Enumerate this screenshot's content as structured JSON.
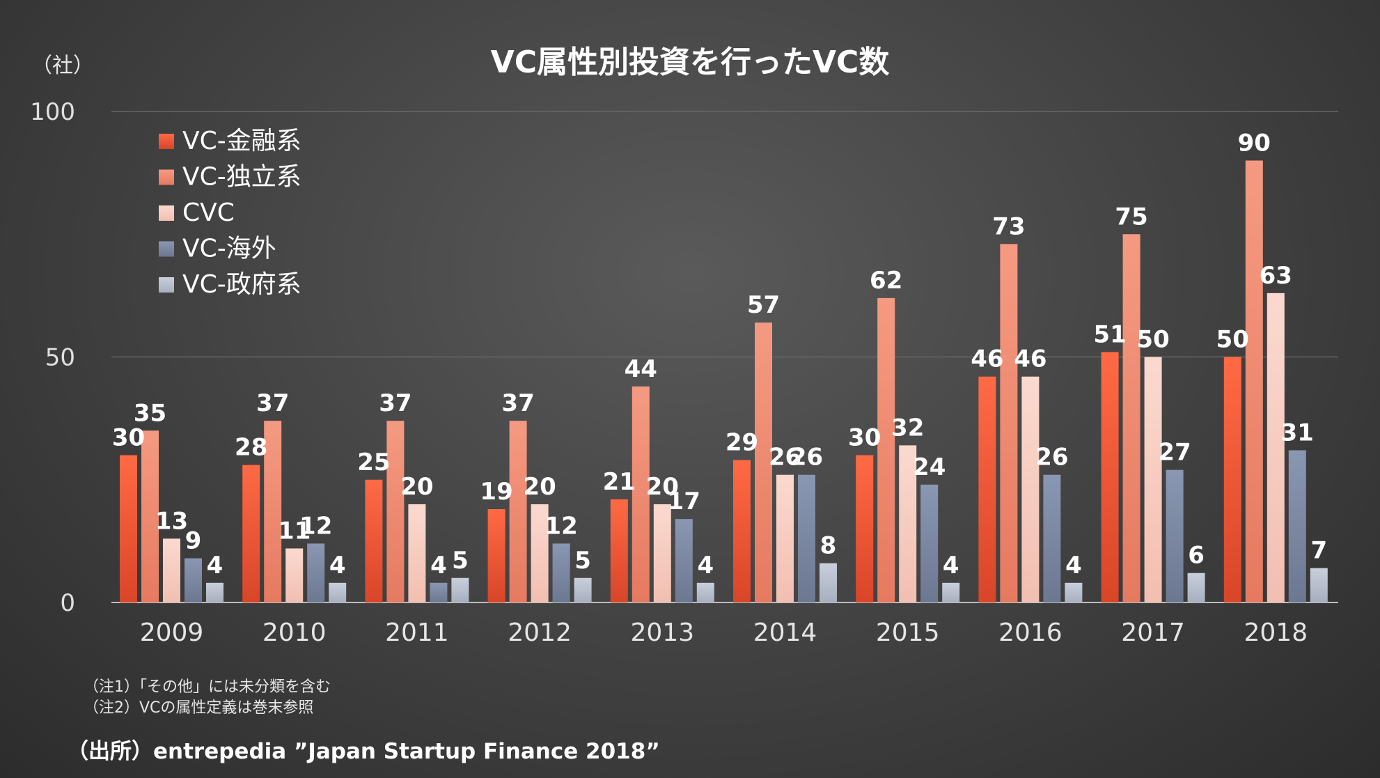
{
  "chart_data": {
    "type": "bar",
    "title": "VC属性別投資を行ったVC数",
    "unit_label": "（社）",
    "ylim": [
      0,
      100
    ],
    "yticks": [
      "0",
      "50",
      "100"
    ],
    "categories": [
      "2009",
      "2010",
      "2011",
      "2012",
      "2013",
      "2014",
      "2015",
      "2016",
      "2017",
      "2018"
    ],
    "series": [
      {
        "name": "VC-金融系",
        "color": "#e8553a",
        "values": [
          30,
          28,
          25,
          19,
          21,
          29,
          30,
          46,
          51,
          50
        ]
      },
      {
        "name": "VC-独立系",
        "color": "#f0907a",
        "values": [
          35,
          37,
          37,
          37,
          44,
          57,
          62,
          73,
          75,
          90
        ]
      },
      {
        "name": "CVC",
        "color": "#f7cdc2",
        "values": [
          13,
          11,
          20,
          20,
          20,
          26,
          32,
          46,
          50,
          63
        ]
      },
      {
        "name": "VC-海外",
        "color": "#7f8ba3",
        "values": [
          9,
          12,
          4,
          12,
          17,
          26,
          24,
          26,
          27,
          31
        ]
      },
      {
        "name": "VC-政府系",
        "color": "#b8c0cf",
        "values": [
          4,
          4,
          5,
          5,
          4,
          8,
          4,
          4,
          6,
          7
        ]
      }
    ],
    "legend_position": "top-left"
  },
  "notes": [
    "（注1）「その他」には未分類を含む",
    "（注2）VCの属性定義は巻末参照"
  ],
  "source": "（出所）entrepedia ”Japan Startup Finance 2018”"
}
